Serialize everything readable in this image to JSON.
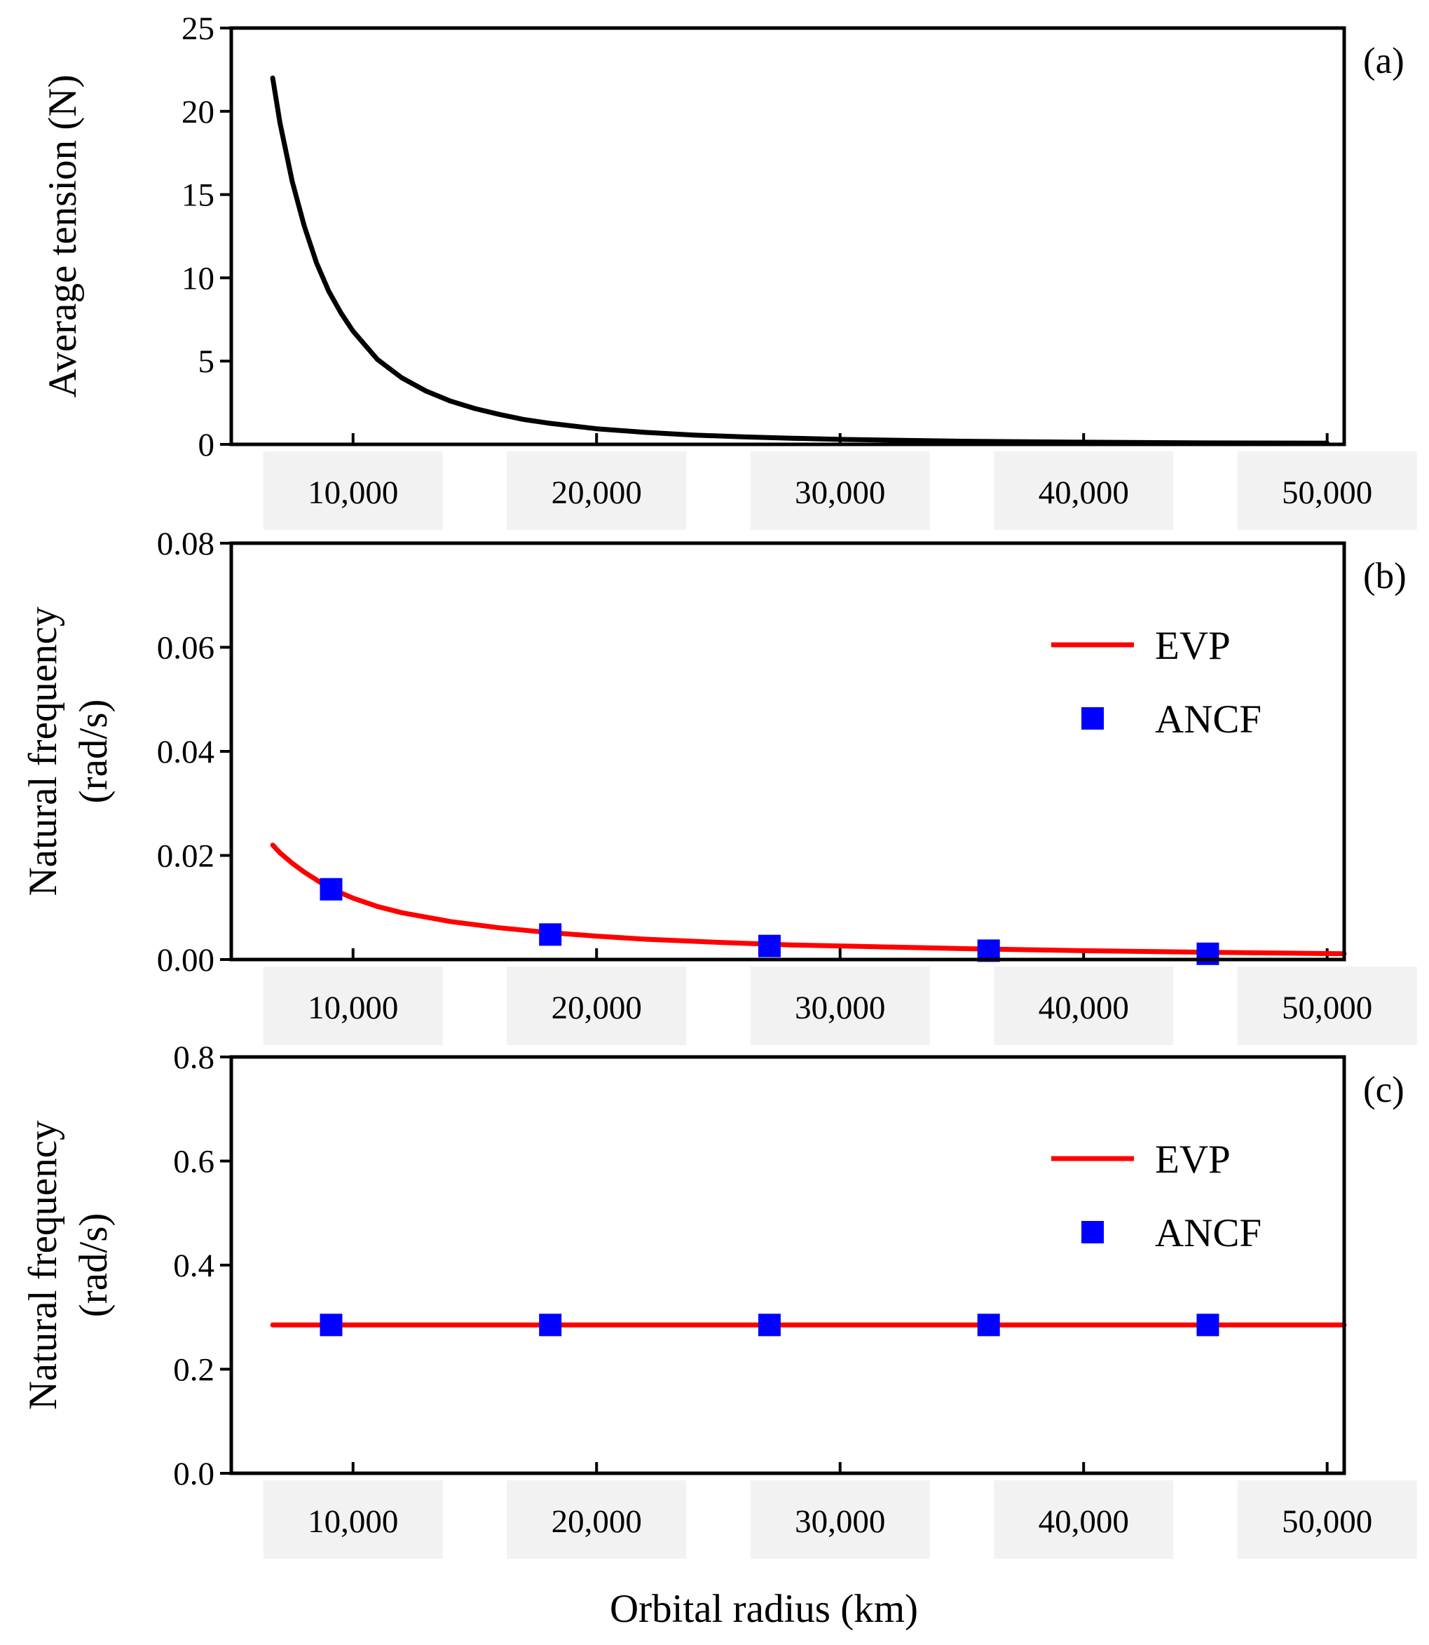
{
  "chart_data": [
    {
      "type": "line",
      "panel_label": "(a)",
      "ylabel": "Average tension (N)",
      "xlabel": "Orbital radius (km)",
      "xlim": [
        5000,
        50700
      ],
      "ylim": [
        0,
        25
      ],
      "x_ticks": [
        10000,
        20000,
        30000,
        40000,
        50000
      ],
      "x_tick_labels": [
        "10,000",
        "20,000",
        "30,000",
        "40,000",
        "50,000"
      ],
      "y_ticks": [
        0,
        5,
        10,
        15,
        20,
        25
      ],
      "y_tick_labels": [
        "0",
        "5",
        "10",
        "15",
        "20",
        "25"
      ],
      "legend": false,
      "series": [
        {
          "name": "Average tension",
          "color": "#000000",
          "style": "line",
          "x": [
            6700,
            7000,
            7500,
            8000,
            8500,
            9000,
            9500,
            10000,
            11000,
            12000,
            13000,
            14000,
            15000,
            16000,
            17000,
            18000,
            20000,
            22000,
            24000,
            26000,
            28000,
            30000,
            35000,
            40000,
            45000,
            50000
          ],
          "y": [
            22.0,
            19.3,
            15.8,
            13.1,
            10.9,
            9.2,
            7.9,
            6.8,
            5.1,
            4.0,
            3.2,
            2.6,
            2.15,
            1.8,
            1.5,
            1.28,
            0.94,
            0.72,
            0.56,
            0.45,
            0.37,
            0.3,
            0.19,
            0.13,
            0.09,
            0.07
          ]
        }
      ]
    },
    {
      "type": "line",
      "panel_label": "(b)",
      "ylabel": [
        "Natural frequency",
        "(rad/s)"
      ],
      "xlim": [
        5000,
        50700
      ],
      "ylim": [
        0,
        0.08
      ],
      "x_ticks": [
        10000,
        20000,
        30000,
        40000,
        50000
      ],
      "x_tick_labels": [
        "10,000",
        "20,000",
        "30,000",
        "40,000",
        "50,000"
      ],
      "y_ticks": [
        0,
        0.02,
        0.04,
        0.06,
        0.08
      ],
      "y_tick_labels": [
        "0.00",
        "0.02",
        "0.04",
        "0.06",
        "0.08"
      ],
      "legend": true,
      "legend_position": "upper-right",
      "series": [
        {
          "name": "EVP",
          "color": "#ff0000",
          "style": "line",
          "x": [
            6700,
            7000,
            7500,
            8000,
            9000,
            10000,
            11000,
            12000,
            14000,
            16000,
            18000,
            20000,
            22000,
            25000,
            28000,
            31000,
            35000,
            40000,
            45000,
            50700
          ],
          "y": [
            0.022,
            0.0205,
            0.0185,
            0.0168,
            0.0138,
            0.0118,
            0.0102,
            0.009,
            0.0073,
            0.0061,
            0.0052,
            0.0045,
            0.0039,
            0.0033,
            0.0028,
            0.0025,
            0.0021,
            0.0017,
            0.0014,
            0.0011
          ]
        },
        {
          "name": "ANCF",
          "color": "#0000ff",
          "style": "markers",
          "x": [
            9100,
            18100,
            27100,
            36100,
            45100
          ],
          "y": [
            0.0135,
            0.0048,
            0.0026,
            0.0017,
            0.0011
          ]
        }
      ]
    },
    {
      "type": "line",
      "panel_label": "(c)",
      "ylabel": [
        "Natural frequency",
        "(rad/s)"
      ],
      "xlim": [
        5000,
        50700
      ],
      "ylim": [
        0,
        0.8
      ],
      "x_ticks": [
        10000,
        20000,
        30000,
        40000,
        50000
      ],
      "x_tick_labels": [
        "10,000",
        "20,000",
        "30,000",
        "40,000",
        "50,000"
      ],
      "y_ticks": [
        0,
        0.2,
        0.4,
        0.6,
        0.8
      ],
      "y_tick_labels": [
        "0.0",
        "0.2",
        "0.4",
        "0.6",
        "0.8"
      ],
      "legend": true,
      "legend_position": "upper-right",
      "series": [
        {
          "name": "EVP",
          "color": "#ff0000",
          "style": "line",
          "x": [
            6700,
            50700
          ],
          "y": [
            0.285,
            0.285
          ]
        },
        {
          "name": "ANCF",
          "color": "#0000ff",
          "style": "markers",
          "x": [
            9100,
            18100,
            27100,
            36100,
            45100
          ],
          "y": [
            0.285,
            0.285,
            0.285,
            0.285,
            0.285
          ]
        }
      ]
    }
  ],
  "figure": {
    "xlabel": "Orbital radius (km)"
  }
}
